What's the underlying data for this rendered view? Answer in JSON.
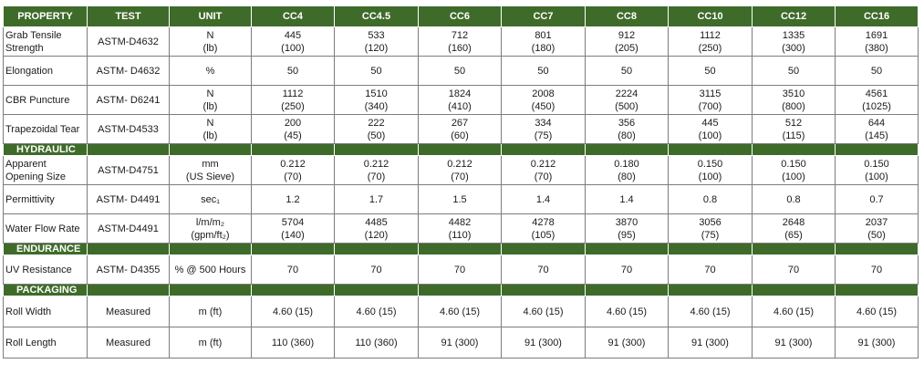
{
  "headers": [
    "PROPERTY",
    "TEST",
    "UNIT",
    "CC4",
    "CC4.5",
    "CC6",
    "CC7",
    "CC8",
    "CC10",
    "CC12",
    "CC16"
  ],
  "sections": [
    {
      "title": "",
      "rows": [
        {
          "property": "Grab Tensile Strength",
          "test": "ASTM-D4632",
          "unit": [
            "N",
            "(lb)"
          ],
          "values": [
            [
              "445",
              "(100)"
            ],
            [
              "533",
              "(120)"
            ],
            [
              "712",
              "(160)"
            ],
            [
              "801",
              "(180)"
            ],
            [
              "912",
              "(205)"
            ],
            [
              "1112",
              "(250)"
            ],
            [
              "1335",
              "(300)"
            ],
            [
              "1691",
              "(380)"
            ]
          ]
        },
        {
          "property": "Elongation",
          "test": "ASTM- D4632",
          "unit": [
            "%"
          ],
          "values": [
            [
              "50"
            ],
            [
              "50"
            ],
            [
              "50"
            ],
            [
              "50"
            ],
            [
              "50"
            ],
            [
              "50"
            ],
            [
              "50"
            ],
            [
              "50"
            ]
          ]
        },
        {
          "property": "CBR Puncture",
          "test": "ASTM- D6241",
          "unit": [
            "N",
            "(lb)"
          ],
          "values": [
            [
              "1112",
              "(250)"
            ],
            [
              "1510",
              "(340)"
            ],
            [
              "1824",
              "(410)"
            ],
            [
              "2008",
              "(450)"
            ],
            [
              "2224",
              "(500)"
            ],
            [
              "3115",
              "(700)"
            ],
            [
              "3510",
              "(800)"
            ],
            [
              "4561",
              "(1025)"
            ]
          ]
        },
        {
          "property": "Trapezoidal Tear",
          "test": "ASTM-D4533",
          "unit": [
            "N",
            "(lb)"
          ],
          "values": [
            [
              "200",
              "(45)"
            ],
            [
              "222",
              "(50)"
            ],
            [
              "267",
              "(60)"
            ],
            [
              "334",
              "(75)"
            ],
            [
              "356",
              "(80)"
            ],
            [
              "445",
              "(100)"
            ],
            [
              "512",
              "(115)"
            ],
            [
              "644",
              "(145)"
            ]
          ]
        }
      ]
    },
    {
      "title": "HYDRAULIC",
      "rows": [
        {
          "property": "Apparent Opening Size",
          "test": "ASTM-D4751",
          "unit": [
            "mm",
            "(US Sieve)"
          ],
          "values": [
            [
              "0.212",
              "(70)"
            ],
            [
              "0.212",
              "(70)"
            ],
            [
              "0.212",
              "(70)"
            ],
            [
              "0.212",
              "(70)"
            ],
            [
              "0.180",
              "(80)"
            ],
            [
              "0.150",
              "(100)"
            ],
            [
              "0.150",
              "(100)"
            ],
            [
              "0.150",
              "(100)"
            ]
          ]
        },
        {
          "property": "Permittivity",
          "test": "ASTM- D4491",
          "unit": [
            "sec₁"
          ],
          "values": [
            [
              "1.2"
            ],
            [
              "1.7"
            ],
            [
              "1.5"
            ],
            [
              "1.4"
            ],
            [
              "1.4"
            ],
            [
              "0.8"
            ],
            [
              "0.8"
            ],
            [
              "0.7"
            ]
          ]
        },
        {
          "property": "Water Flow Rate",
          "test": "ASTM-D4491",
          "unit": [
            "l/m/m₂",
            "(gpm/ft₂)"
          ],
          "values": [
            [
              "5704",
              "(140)"
            ],
            [
              "4485",
              "(120)"
            ],
            [
              "4482",
              "(110)"
            ],
            [
              "4278",
              "(105)"
            ],
            [
              "3870",
              "(95)"
            ],
            [
              "3056",
              "(75)"
            ],
            [
              "2648",
              "(65)"
            ],
            [
              "2037",
              "(50)"
            ]
          ]
        }
      ]
    },
    {
      "title": "ENDURANCE",
      "rows": [
        {
          "property": "UV Resistance",
          "test": "ASTM- D4355",
          "unit": [
            "% @ 500 Hours"
          ],
          "values": [
            [
              "70"
            ],
            [
              "70"
            ],
            [
              "70"
            ],
            [
              "70"
            ],
            [
              "70"
            ],
            [
              "70"
            ],
            [
              "70"
            ],
            [
              "70"
            ]
          ]
        }
      ]
    },
    {
      "title": "PACKAGING",
      "rows": [
        {
          "property": "Roll Width",
          "test": "Measured",
          "unit": [
            "m (ft)"
          ],
          "values": [
            [
              "4.60 (15)"
            ],
            [
              "4.60 (15)"
            ],
            [
              "4.60 (15)"
            ],
            [
              "4.60 (15)"
            ],
            [
              "4.60 (15)"
            ],
            [
              "4.60 (15)"
            ],
            [
              "4.60 (15)"
            ],
            [
              "4.60 (15)"
            ]
          ]
        },
        {
          "property": "Roll Length",
          "test": "Measured",
          "unit": [
            "m (ft)"
          ],
          "values": [
            [
              "110 (360)"
            ],
            [
              "110 (360)"
            ],
            [
              "91 (300)"
            ],
            [
              "91 (300)"
            ],
            [
              "91 (300)"
            ],
            [
              "91 (300)"
            ],
            [
              "91 (300)"
            ],
            [
              "91 (300)"
            ]
          ]
        }
      ]
    }
  ]
}
